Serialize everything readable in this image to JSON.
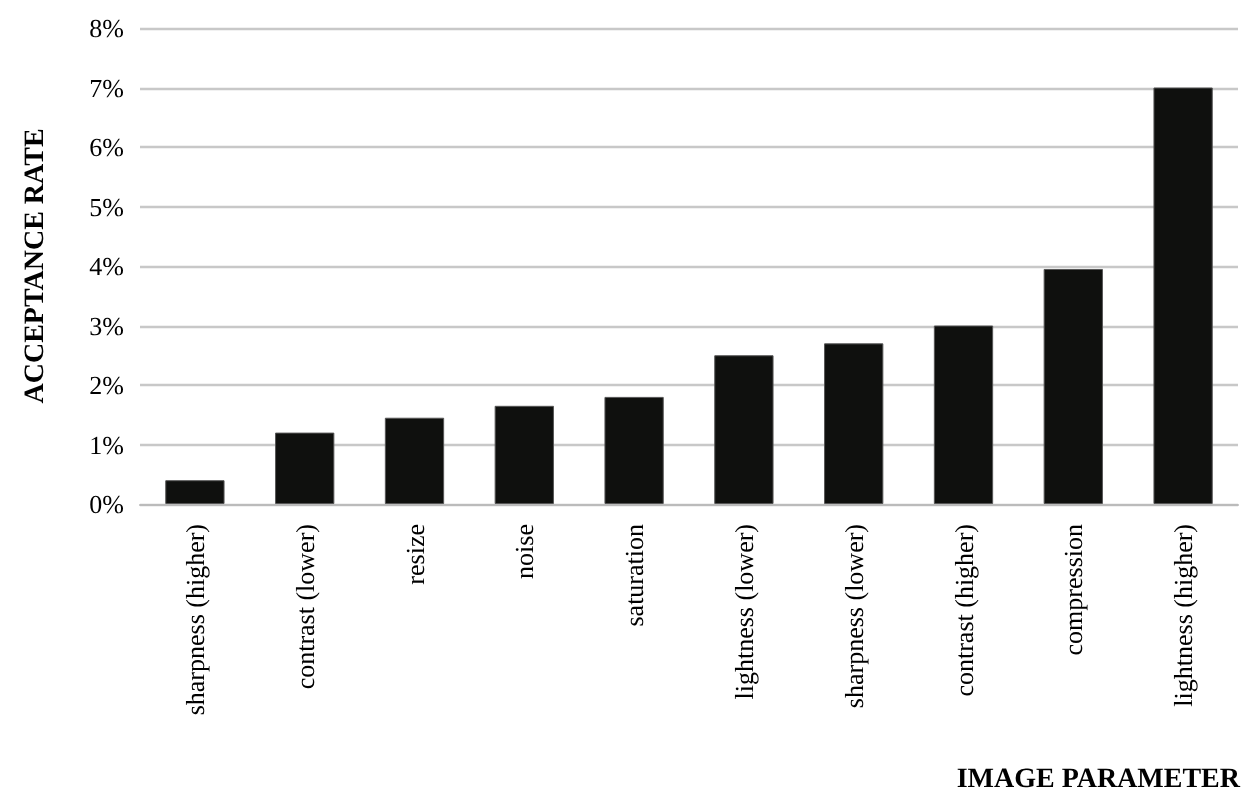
{
  "chart_data": {
    "type": "bar",
    "categories": [
      "sharpness (higher)",
      "contrast (lower)",
      "resize",
      "noise",
      "saturation",
      "lightness (lower)",
      "sharpness (lower)",
      "contrast (higher)",
      "compression",
      "lightness (higher)"
    ],
    "values": [
      0.4,
      1.2,
      1.45,
      1.65,
      1.8,
      2.5,
      2.7,
      3.0,
      3.95,
      7.0
    ],
    "color": "#0f100e",
    "xlabel": "IMAGE PARAMETER",
    "ylabel": "ACCEPTANCE RATE",
    "ylim": [
      0,
      8
    ],
    "yticks": [
      {
        "value": 0,
        "label": "0%"
      },
      {
        "value": 1,
        "label": "1%"
      },
      {
        "value": 2,
        "label": "2%"
      },
      {
        "value": 3,
        "label": "3%"
      },
      {
        "value": 4,
        "label": "4%"
      },
      {
        "value": 5,
        "label": "5%"
      },
      {
        "value": 6,
        "label": "6%"
      },
      {
        "value": 7,
        "label": "7%"
      },
      {
        "value": 8,
        "label": "8%"
      }
    ],
    "grid": "y"
  }
}
